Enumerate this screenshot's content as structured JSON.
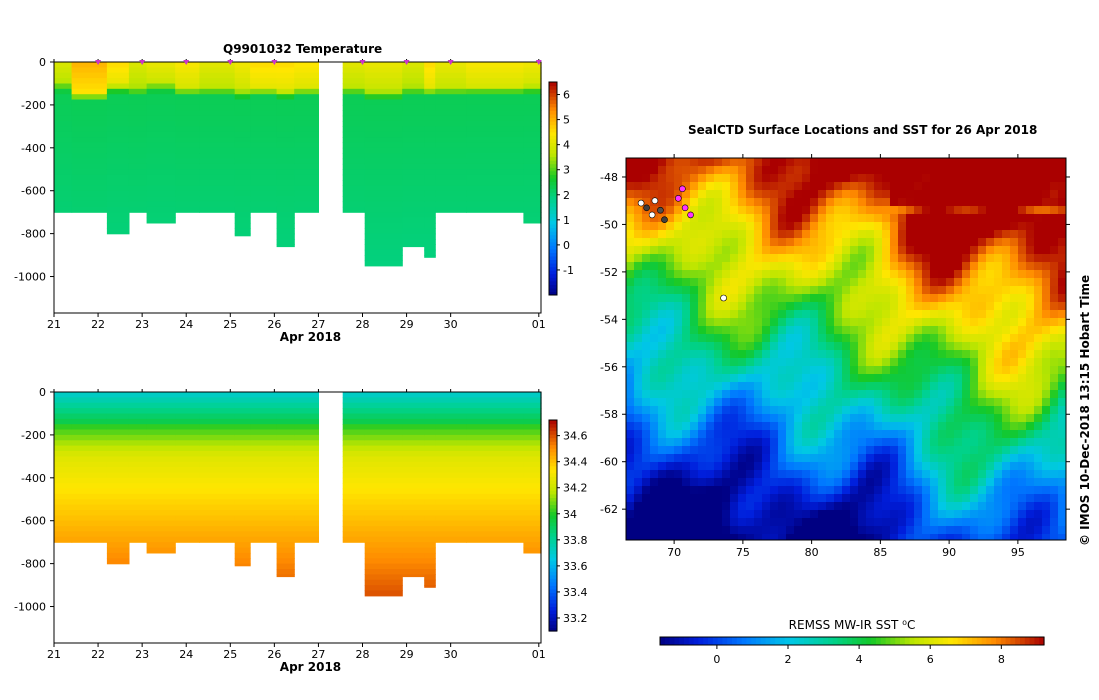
{
  "figure": {
    "temperature_title": "Q9901032  Temperature",
    "map_title": "SealCTD Surface Locations and SST for 26 Apr 2018",
    "credit": "© IMOS 10-Dec-2018 13:15 Hobart Time",
    "colorbar_map_label": "REMSS MW-IR SST ⁰C",
    "xaxis_label": "Apr 2018"
  },
  "chart_data": [
    {
      "type": "heatmap",
      "name": "temperature-section",
      "title": "Q9901032  Temperature",
      "xlabel": "Apr 2018",
      "ylabel": "",
      "x_ticks": [
        "21",
        "22",
        "23",
        "24",
        "25",
        "26",
        "27",
        "28",
        "29",
        "30",
        "01"
      ],
      "y_ticks": [
        0,
        -200,
        -400,
        -600,
        -800,
        -1000
      ],
      "xlim": [
        21,
        32.05
      ],
      "ylim": [
        -1170,
        0
      ],
      "colorbar": {
        "ticks": [
          -1,
          0,
          1,
          2,
          3,
          4,
          5,
          6
        ],
        "range": [
          -2,
          6.5
        ]
      },
      "profile_markers_day": [
        22,
        23,
        24,
        25,
        26,
        28,
        29,
        30,
        32
      ],
      "profiles": [
        {
          "x0": 21.0,
          "x1": 21.4,
          "depth": 700,
          "surface": 4.0,
          "thermo": 130
        },
        {
          "x0": 21.4,
          "x1": 22.2,
          "depth": 700,
          "surface": 5.0,
          "thermo": 170
        },
        {
          "x0": 22.2,
          "x1": 22.7,
          "depth": 800,
          "surface": 4.6,
          "thermo": 135
        },
        {
          "x0": 22.7,
          "x1": 23.1,
          "depth": 700,
          "surface": 4.0,
          "thermo": 150
        },
        {
          "x0": 23.1,
          "x1": 23.75,
          "depth": 750,
          "surface": 4.2,
          "thermo": 130
        },
        {
          "x0": 23.75,
          "x1": 24.3,
          "depth": 700,
          "surface": 4.4,
          "thermo": 150
        },
        {
          "x0": 24.3,
          "x1": 25.1,
          "depth": 700,
          "surface": 4.1,
          "thermo": 150
        },
        {
          "x0": 25.1,
          "x1": 25.45,
          "depth": 810,
          "surface": 4.3,
          "thermo": 160
        },
        {
          "x0": 25.45,
          "x1": 26.05,
          "depth": 700,
          "surface": 4.6,
          "thermo": 150
        },
        {
          "x0": 26.05,
          "x1": 26.45,
          "depth": 860,
          "surface": 4.6,
          "thermo": 160
        },
        {
          "x0": 26.45,
          "x1": 27.0,
          "depth": 700,
          "surface": 4.5,
          "thermo": 150
        },
        {
          "x0": 27.55,
          "x1": 28.05,
          "depth": 700,
          "surface": 4.1,
          "thermo": 150
        },
        {
          "x0": 28.05,
          "x1": 28.9,
          "depth": 950,
          "surface": 4.2,
          "thermo": 165
        },
        {
          "x0": 28.9,
          "x1": 29.4,
          "depth": 860,
          "surface": 4.0,
          "thermo": 150
        },
        {
          "x0": 29.4,
          "x1": 29.65,
          "depth": 910,
          "surface": 4.6,
          "thermo": 150
        },
        {
          "x0": 29.65,
          "x1": 30.35,
          "depth": 700,
          "surface": 4.2,
          "thermo": 150
        },
        {
          "x0": 30.35,
          "x1": 31.65,
          "depth": 700,
          "surface": 4.4,
          "thermo": 145
        },
        {
          "x0": 31.65,
          "x1": 32.05,
          "depth": 750,
          "surface": 4.3,
          "thermo": 140
        }
      ]
    },
    {
      "type": "heatmap",
      "name": "salinity-section",
      "title": "",
      "xlabel": "Apr 2018",
      "ylabel": "",
      "x_ticks": [
        "21",
        "22",
        "23",
        "24",
        "25",
        "26",
        "27",
        "28",
        "29",
        "30",
        "01"
      ],
      "y_ticks": [
        0,
        -200,
        -400,
        -600,
        -800,
        -1000
      ],
      "xlim": [
        21,
        32.05
      ],
      "ylim": [
        -1170,
        0
      ],
      "colorbar": {
        "ticks": [
          33.2,
          33.4,
          33.6,
          33.8,
          34,
          34.2,
          34.4,
          34.6
        ],
        "range": [
          33.1,
          34.72
        ]
      },
      "surface_value": 33.75,
      "deep_value": 34.6
    },
    {
      "type": "heatmap",
      "name": "sst-map",
      "title": "SealCTD Surface Locations and SST for 26 Apr 2018",
      "xlabel": "",
      "ylabel": "",
      "x_ticks": [
        70,
        75,
        80,
        85,
        90,
        95
      ],
      "y_ticks": [
        -48,
        -50,
        -52,
        -54,
        -56,
        -58,
        -60,
        -62
      ],
      "xlim": [
        66.5,
        98.5
      ],
      "ylim": [
        -63.3,
        -47.2
      ],
      "colorbar": {
        "label": "REMSS MW-IR SST ⁰C",
        "ticks": [
          0,
          2,
          4,
          6,
          8
        ],
        "range": [
          -1.6,
          9.2
        ]
      },
      "ctd_locations": [
        {
          "lon": 67.6,
          "lat": -49.1,
          "color": "#ffffff"
        },
        {
          "lon": 68.0,
          "lat": -49.3,
          "color": "#404040"
        },
        {
          "lon": 68.4,
          "lat": -49.6,
          "color": "#ffffff"
        },
        {
          "lon": 69.0,
          "lat": -49.4,
          "color": "#505050"
        },
        {
          "lon": 68.6,
          "lat": -49.0,
          "color": "#ffffff"
        },
        {
          "lon": 69.3,
          "lat": -49.8,
          "color": "#404040"
        },
        {
          "lon": 70.3,
          "lat": -48.9,
          "color": "#ff33ff"
        },
        {
          "lon": 70.8,
          "lat": -49.3,
          "color": "#ff33ff"
        },
        {
          "lon": 71.2,
          "lat": -49.6,
          "color": "#ff33ff"
        },
        {
          "lon": 70.6,
          "lat": -48.5,
          "color": "#ff33ff"
        },
        {
          "lon": 73.6,
          "lat": -53.1,
          "color": "#ffffff"
        }
      ]
    }
  ]
}
